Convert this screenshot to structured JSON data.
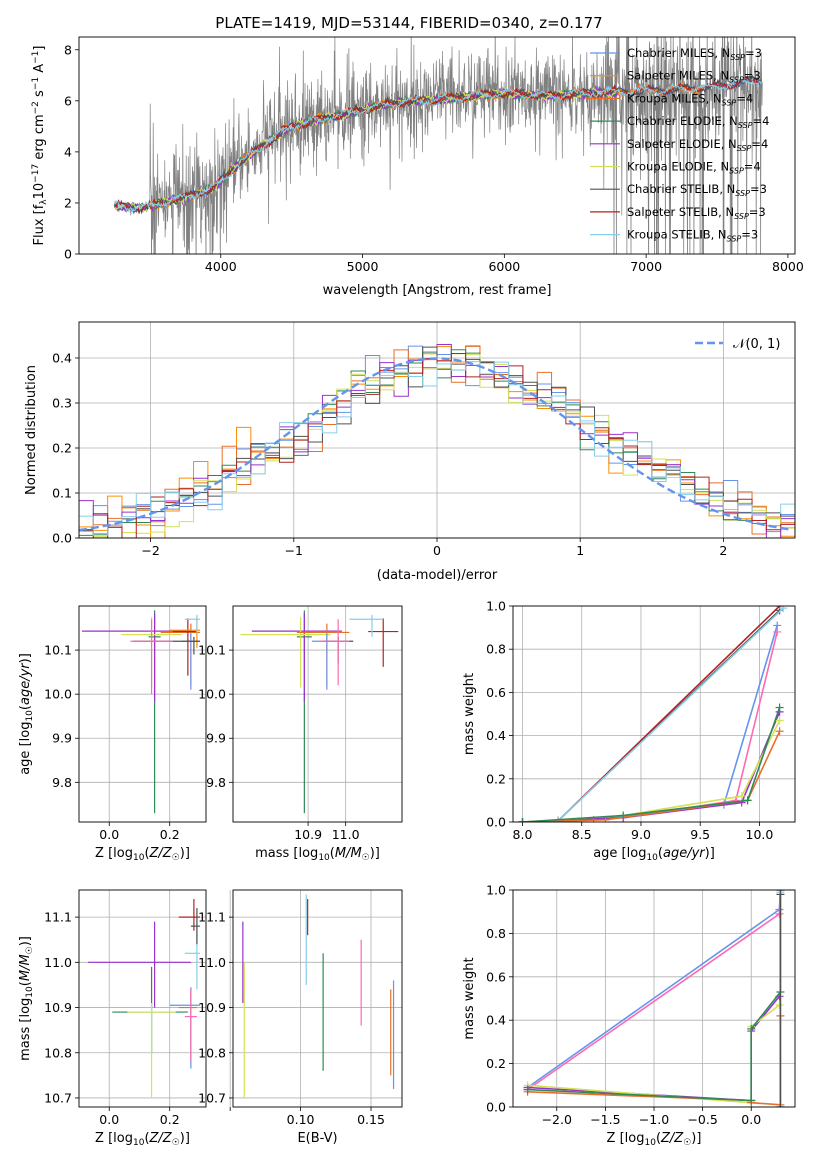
{
  "figure_title": "PLATE=1419, MJD=53144, FIBERID=0340, z=0.177",
  "chart_data": [
    {
      "id": "spectrum",
      "type": "line",
      "title": "PLATE=1419, MJD=53144, FIBERID=0340, z=0.177",
      "xlabel": "wavelength [Angstrom, rest frame]",
      "ylabel": "Flux [f_λ 10^-17 erg cm^-2 s^-1 A^-1]",
      "xlim": [
        3000,
        8050
      ],
      "ylim": [
        0,
        8.5
      ],
      "xticks": [
        4000,
        5000,
        6000,
        7000,
        8000
      ],
      "yticks": [
        0,
        2,
        4,
        6,
        8
      ],
      "grid": false,
      "legend": "top-right",
      "data_range_x": [
        3250,
        7820
      ],
      "continuum_model": [
        [
          3250,
          1.9
        ],
        [
          3450,
          1.8
        ],
        [
          3650,
          2.1
        ],
        [
          3800,
          2.3
        ],
        [
          3950,
          2.6
        ],
        [
          4100,
          3.4
        ],
        [
          4300,
          4.3
        ],
        [
          4500,
          5.0
        ],
        [
          4800,
          5.4
        ],
        [
          5200,
          5.9
        ],
        [
          5600,
          6.1
        ],
        [
          6000,
          6.3
        ],
        [
          6300,
          6.2
        ],
        [
          6600,
          6.3
        ],
        [
          7000,
          6.4
        ],
        [
          7400,
          6.5
        ],
        [
          7800,
          6.8
        ]
      ],
      "series": [
        {
          "name": "Chabrier MILES, N_SSP=3",
          "color": "#6495ed"
        },
        {
          "name": "Salpeter MILES, N_SSP=3",
          "color": "#ff8c00"
        },
        {
          "name": "Kroupa MILES, N_SSP=4",
          "color": "#e8702a"
        },
        {
          "name": "Chabrier ELODIE, N_SSP=4",
          "color": "#2e8b57"
        },
        {
          "name": "Salpeter ELODIE, N_SSP=4",
          "color": "#9932cc"
        },
        {
          "name": "Kroupa ELODIE, N_SSP=4",
          "color": "#d4e157"
        },
        {
          "name": "Chabrier STELIB, N_SSP=3",
          "color": "#505050"
        },
        {
          "name": "Salpeter STELIB, N_SSP=3",
          "color": "#b22222"
        },
        {
          "name": "Kroupa STELIB, N_SSP=3",
          "color": "#87ceeb"
        }
      ]
    },
    {
      "id": "residuals",
      "type": "line",
      "xlabel": "(data-model)/error",
      "ylabel": "Normed distribution",
      "xlim": [
        -2.5,
        2.5
      ],
      "ylim": [
        0,
        0.48
      ],
      "xticks": [
        -2,
        -1,
        0,
        1,
        2
      ],
      "yticks": [
        0.0,
        0.1,
        0.2,
        0.3,
        0.4
      ],
      "grid": true,
      "legend": "top-right",
      "reference_curve": {
        "label": "𝒩(0, 1)",
        "color": "#6495ed",
        "mean": 0,
        "sigma": 1
      }
    },
    {
      "id": "age_vs_Z",
      "type": "scatter",
      "xlabel": "Z [log10(Z/Z☉)]",
      "ylabel": "age  [log10(age/yr)]",
      "xlim": [
        -0.1,
        0.32
      ],
      "ylim": [
        9.71,
        10.2
      ],
      "xticks": [
        0.0,
        0.2
      ],
      "yticks": [
        9.8,
        9.9,
        10.0,
        10.1
      ],
      "grid": true,
      "crosses": [
        {
          "x": 0.15,
          "xerr": [
            0.02,
            0.02
          ],
          "y": 10.13,
          "yerr": [
            0.4,
            0.06
          ],
          "color": "#2e8b57"
        },
        {
          "x": 0.15,
          "xerr": [
            0.24,
            0.12
          ],
          "y": 10.143,
          "yerr": [
            0.16,
            0.04
          ],
          "color": "#9932cc"
        },
        {
          "x": 0.14,
          "xerr": [
            0.1,
            0.1
          ],
          "y": 10.135,
          "yerr": [
            0.12,
            0.04
          ],
          "color": "#d4e157"
        },
        {
          "x": 0.27,
          "xerr": [
            0.1,
            0.03
          ],
          "y": 10.14,
          "yerr": [
            0.12,
            0.02
          ],
          "color": "#e8702a"
        },
        {
          "x": 0.27,
          "xerr": [
            0.03,
            0.03
          ],
          "y": 10.12,
          "yerr": [
            0.11,
            0.02
          ],
          "color": "#6495ed"
        },
        {
          "x": 0.26,
          "xerr": [
            0.05,
            0.03
          ],
          "y": 10.142,
          "yerr": [
            0.1,
            0.03
          ],
          "color": "#b22222"
        },
        {
          "x": 0.29,
          "xerr": [
            0.09,
            0.01
          ],
          "y": 10.145,
          "yerr": [
            0.04,
            0.03
          ],
          "color": "#ff8c00"
        },
        {
          "x": 0.29,
          "xerr": [
            0.04,
            0.01
          ],
          "y": 10.17,
          "yerr": [
            0.03,
            0.01
          ],
          "color": "#87ceeb"
        },
        {
          "x": 0.28,
          "xerr": [
            0.2,
            0.02
          ],
          "y": 10.12,
          "yerr": [
            0.03,
            0.01
          ],
          "color": "#505050"
        },
        {
          "x": 0.14,
          "xerr": [
            0.07,
            0.07
          ],
          "y": 10.12,
          "yerr": [
            0.12,
            0.05
          ],
          "color": "#ff69b4"
        }
      ]
    },
    {
      "id": "age_vs_mass",
      "type": "scatter",
      "xlabel": "mass [log10(M/M☉)]",
      "ylabel": "",
      "xlim": [
        10.7,
        11.15
      ],
      "ylim": [
        9.71,
        10.2
      ],
      "xticks": [
        10.9,
        11.0
      ],
      "yticks": [
        9.8,
        9.9,
        10.0,
        10.1
      ],
      "grid": true,
      "crosses": [
        {
          "x": 10.89,
          "xerr": [
            0.02,
            0.02
          ],
          "y": 10.13,
          "yerr": [
            0.4,
            0.06
          ],
          "color": "#2e8b57"
        },
        {
          "x": 10.89,
          "xerr": [
            0.14,
            0.1
          ],
          "y": 10.143,
          "yerr": [
            0.16,
            0.04
          ],
          "color": "#9932cc"
        },
        {
          "x": 10.88,
          "xerr": [
            0.16,
            0.08
          ],
          "y": 10.135,
          "yerr": [
            0.12,
            0.04
          ],
          "color": "#d4e157"
        },
        {
          "x": 10.95,
          "xerr": [
            0.08,
            0.06
          ],
          "y": 10.14,
          "yerr": [
            0.12,
            0.02
          ],
          "color": "#e8702a"
        },
        {
          "x": 10.95,
          "xerr": [
            0.04,
            0.03
          ],
          "y": 10.12,
          "yerr": [
            0.11,
            0.02
          ],
          "color": "#6495ed"
        },
        {
          "x": 11.1,
          "xerr": [
            0.04,
            0.04
          ],
          "y": 10.142,
          "yerr": [
            0.08,
            0.03
          ],
          "color": "#b22222"
        },
        {
          "x": 11.07,
          "xerr": [
            0.06,
            0.03
          ],
          "y": 10.17,
          "yerr": [
            0.04,
            0.01
          ],
          "color": "#87ceeb"
        },
        {
          "x": 10.98,
          "xerr": [
            0.04,
            0.04
          ],
          "y": 10.12,
          "yerr": [
            0.05,
            0.01
          ],
          "color": "#505050"
        },
        {
          "x": 10.98,
          "xerr": [
            0.05,
            0.03
          ],
          "y": 10.12,
          "yerr": [
            0.1,
            0.05
          ],
          "color": "#ff69b4"
        }
      ]
    },
    {
      "id": "cumulative_age",
      "type": "line",
      "xlabel": "age  [log10(age/yr)]",
      "ylabel": "mass weight",
      "xlim": [
        7.92,
        10.3
      ],
      "ylim": [
        0,
        1.0
      ],
      "xticks": [
        8.0,
        8.5,
        9.0,
        9.5,
        10.0
      ],
      "yticks": [
        0.0,
        0.2,
        0.4,
        0.6,
        0.8,
        1.0
      ],
      "grid": true,
      "series": [
        {
          "color": "#505050",
          "points": [
            [
              8.0,
              0.0
            ],
            [
              8.3,
              0.005
            ],
            [
              10.17,
              0.98
            ]
          ]
        },
        {
          "color": "#b22222",
          "points": [
            [
              8.0,
              0.0
            ],
            [
              8.3,
              0.005
            ],
            [
              10.17,
              1.0
            ]
          ]
        },
        {
          "color": "#87ceeb",
          "points": [
            [
              8.0,
              0.0
            ],
            [
              8.3,
              0.005
            ],
            [
              10.2,
              0.99
            ]
          ]
        },
        {
          "color": "#6495ed",
          "points": [
            [
              8.0,
              0.0
            ],
            [
              8.6,
              0.01
            ],
            [
              9.7,
              0.08
            ],
            [
              10.15,
              0.91
            ]
          ]
        },
        {
          "color": "#ff69b4",
          "points": [
            [
              8.0,
              0.0
            ],
            [
              8.85,
              0.02
            ],
            [
              9.8,
              0.1
            ],
            [
              10.15,
              0.88
            ]
          ]
        },
        {
          "color": "#9932cc",
          "points": [
            [
              8.0,
              0.0
            ],
            [
              8.85,
              0.02
            ],
            [
              9.85,
              0.09
            ],
            [
              10.17,
              0.51
            ]
          ]
        },
        {
          "color": "#d4e157",
          "points": [
            [
              8.0,
              0.0
            ],
            [
              8.85,
              0.03
            ],
            [
              9.85,
              0.12
            ],
            [
              10.17,
              0.47
            ]
          ]
        },
        {
          "color": "#e8702a",
          "points": [
            [
              8.0,
              0.0
            ],
            [
              8.7,
              0.01
            ],
            [
              9.9,
              0.1
            ],
            [
              10.17,
              0.42
            ]
          ]
        },
        {
          "color": "#2e8b57",
          "points": [
            [
              8.0,
              0.0
            ],
            [
              8.85,
              0.03
            ],
            [
              9.9,
              0.1
            ],
            [
              10.17,
              0.53
            ]
          ]
        }
      ]
    },
    {
      "id": "mass_vs_Z",
      "type": "scatter",
      "xlabel": "Z [log10(Z/Z☉)]",
      "ylabel": "mass [log10(M/M☉)]",
      "xlim": [
        -0.1,
        0.32
      ],
      "ylim": [
        10.68,
        11.16
      ],
      "xticks": [
        0.0,
        0.2
      ],
      "yticks": [
        10.7,
        10.8,
        10.9,
        11.0,
        11.1
      ],
      "grid": true,
      "crosses": [
        {
          "x": 0.15,
          "xerr": [
            0.22,
            0.12
          ],
          "y": 11.0,
          "yerr": [
            0.1,
            0.09
          ],
          "color": "#9932cc"
        },
        {
          "x": 0.14,
          "xerr": [
            0.13,
            0.12
          ],
          "y": 10.89,
          "yerr": [
            0.09,
            0.1
          ],
          "color": "#2e8b57"
        },
        {
          "x": 0.14,
          "xerr": [
            0.08,
            0.08
          ],
          "y": 10.89,
          "yerr": [
            0.19,
            0.02
          ],
          "color": "#d4e157"
        },
        {
          "x": 0.27,
          "xerr": [
            0.04,
            0.02
          ],
          "y": 10.9,
          "yerr": [
            0.12,
            0.04
          ],
          "color": "#e8702a"
        },
        {
          "x": 0.27,
          "xerr": [
            0.07,
            0.03
          ],
          "y": 10.905,
          "yerr": [
            0.14,
            0.04
          ],
          "color": "#6495ed"
        },
        {
          "x": 0.28,
          "xerr": [
            0.05,
            0.02
          ],
          "y": 11.1,
          "yerr": [
            0.03,
            0.04
          ],
          "color": "#b22222"
        },
        {
          "x": 0.29,
          "xerr": [
            0.04,
            0.01
          ],
          "y": 11.02,
          "yerr": [
            0.08,
            0.08
          ],
          "color": "#87ceeb"
        },
        {
          "x": 0.29,
          "xerr": [
            0.02,
            0.01
          ],
          "y": 11.08,
          "yerr": [
            0.04,
            0.04
          ],
          "color": "#505050"
        },
        {
          "x": 0.27,
          "xerr": [
            0.02,
            0.02
          ],
          "y": 10.88,
          "yerr": [
            0.1,
            0.06
          ],
          "color": "#ff69b4"
        }
      ]
    },
    {
      "id": "mass_vs_ebv",
      "type": "scatter",
      "xlabel": "E(B-V)",
      "ylabel": "",
      "xlim": [
        0.052,
        0.172
      ],
      "ylim": [
        10.68,
        11.16
      ],
      "xticks": [
        0.05,
        0.1,
        0.15
      ],
      "xticklabels": [
        "",
        "0.10",
        "0.15"
      ],
      "yticks": [
        10.7,
        10.8,
        10.9,
        11.0,
        11.1
      ],
      "grid": true,
      "crosses": [
        {
          "x": 0.059,
          "y": 11.0,
          "yerr": [
            0.09,
            0.09
          ],
          "color": "#9932cc"
        },
        {
          "x": 0.06,
          "y": 10.85,
          "yerr": [
            0.15,
            0.15
          ],
          "color": "#d4e157"
        },
        {
          "x": 0.104,
          "y": 11.05,
          "yerr": [
            0.1,
            0.1
          ],
          "color": "#87ceeb"
        },
        {
          "x": 0.105,
          "y": 11.1,
          "yerr": [
            0.04,
            0.04
          ],
          "color": "#b22222"
        },
        {
          "x": 0.116,
          "y": 10.89,
          "yerr": [
            0.13,
            0.13
          ],
          "color": "#2e8b57"
        },
        {
          "x": 0.143,
          "y": 10.95,
          "yerr": [
            0.09,
            0.1
          ],
          "color": "#ff69b4"
        },
        {
          "x": 0.164,
          "y": 10.85,
          "yerr": [
            0.1,
            0.09
          ],
          "color": "#e8702a"
        },
        {
          "x": 0.166,
          "y": 10.84,
          "yerr": [
            0.12,
            0.12
          ],
          "color": "#6495ed"
        }
      ]
    },
    {
      "id": "cumulative_Z",
      "type": "line",
      "xlabel": "Z [log10(Z/Z☉)]",
      "ylabel": "mass weight",
      "xlim": [
        -2.45,
        0.45
      ],
      "ylim": [
        0,
        1.0
      ],
      "xticks": [
        -2.0,
        -1.5,
        -1.0,
        -0.5,
        0.0
      ],
      "yticks": [
        0.0,
        0.2,
        0.4,
        0.6,
        0.8,
        1.0
      ],
      "grid": true,
      "series": [
        {
          "color": "#6495ed",
          "points": [
            [
              -2.3,
              0.09
            ],
            [
              0.29,
              0.91
            ],
            [
              0.3,
              1.0
            ]
          ]
        },
        {
          "color": "#ff69b4",
          "points": [
            [
              -2.3,
              0.08
            ],
            [
              0.29,
              0.89
            ],
            [
              0.3,
              1.0
            ]
          ]
        },
        {
          "color": "#9932cc",
          "points": [
            [
              -2.3,
              0.09
            ],
            [
              0.0,
              0.03
            ],
            [
              0.0,
              0.35
            ],
            [
              0.29,
              0.51
            ]
          ]
        },
        {
          "color": "#d4e157",
          "points": [
            [
              -2.3,
              0.1
            ],
            [
              0.0,
              0.02
            ],
            [
              0.0,
              0.37
            ],
            [
              0.29,
              0.47
            ]
          ]
        },
        {
          "color": "#e8702a",
          "points": [
            [
              -2.3,
              0.07
            ],
            [
              0.0,
              0.03
            ],
            [
              0.0,
              0.02
            ],
            [
              0.3,
              0.01
            ],
            [
              0.3,
              0.42
            ]
          ]
        },
        {
          "color": "#2e8b57",
          "points": [
            [
              -2.3,
              0.08
            ],
            [
              0.0,
              0.03
            ],
            [
              0.0,
              0.36
            ],
            [
              0.3,
              0.53
            ],
            [
              0.3,
              1.0
            ]
          ]
        },
        {
          "color": "#87ceeb",
          "points": [
            [
              0.3,
              0.0
            ],
            [
              0.3,
              0.99
            ]
          ]
        },
        {
          "color": "#505050",
          "points": [
            [
              0.3,
              0.0
            ],
            [
              0.3,
              0.98
            ]
          ]
        }
      ]
    }
  ]
}
